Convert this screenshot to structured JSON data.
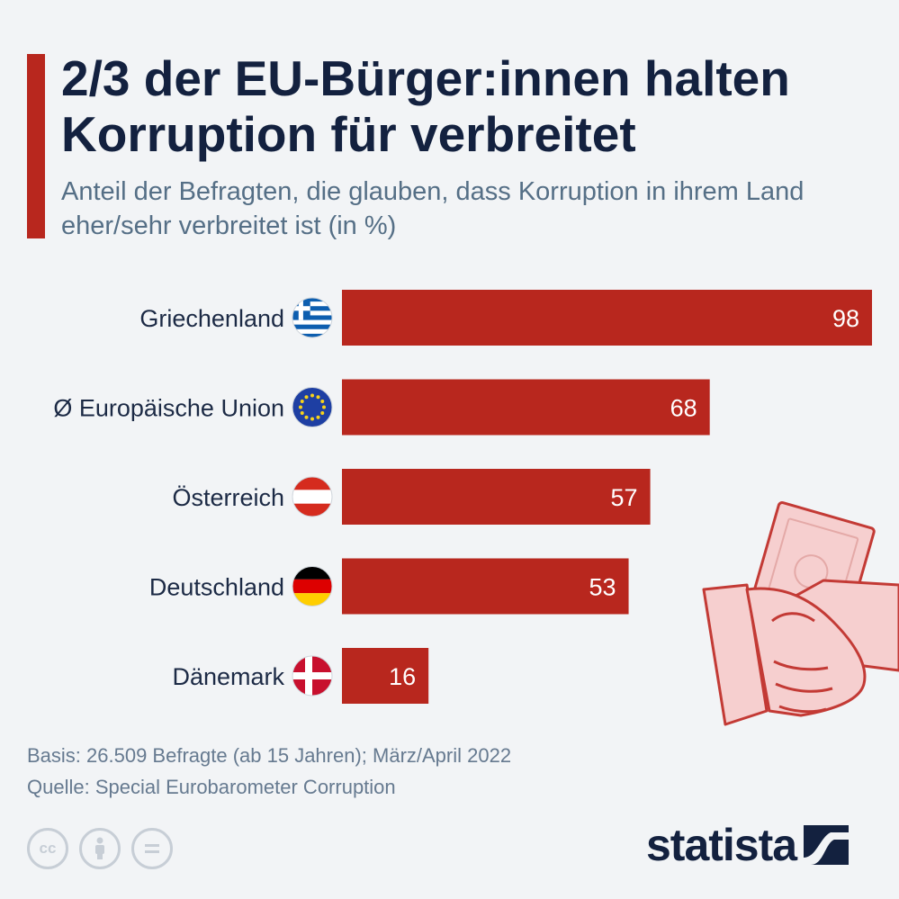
{
  "header": {
    "title": "2/3 der EU-Bürger:innen halten Korruption für verbreitet",
    "subtitle": "Anteil der Befragten, die glauben, dass Korruption in ihrem Land eher/sehr verbreitet ist (in %)"
  },
  "colors": {
    "accent": "#b8271e",
    "bar": "#b8271e",
    "title": "#13213f",
    "subtitle": "#556f86",
    "background": "#f2f4f6"
  },
  "chart_data": {
    "type": "bar",
    "orientation": "horizontal",
    "categories": [
      "Griechenland",
      "Ø Europäische Union",
      "Österreich",
      "Deutschland",
      "Dänemark"
    ],
    "values": [
      98,
      68,
      57,
      53,
      16
    ],
    "flags": [
      "flag-greece-icon",
      "flag-eu-icon",
      "flag-austria-icon",
      "flag-germany-icon",
      "flag-denmark-icon"
    ],
    "title": "2/3 der EU-Bürger:innen halten Korruption für verbreitet",
    "xlabel": "",
    "ylabel": "",
    "xlim": [
      0,
      98
    ],
    "value_labels": true,
    "grid": false
  },
  "illustration": {
    "icon": "handshake-with-money-icon"
  },
  "footer": {
    "basis": "Basis: 26.509 Befragte (ab 15 Jahren); März/April 2022",
    "source": "Quelle: Special Eurobarometer Corruption",
    "license_icons": [
      "cc",
      "by",
      "nd"
    ],
    "license_icon_names": [
      "cc-icon",
      "attribution-icon",
      "no-derivatives-icon"
    ],
    "brand": "statista"
  }
}
